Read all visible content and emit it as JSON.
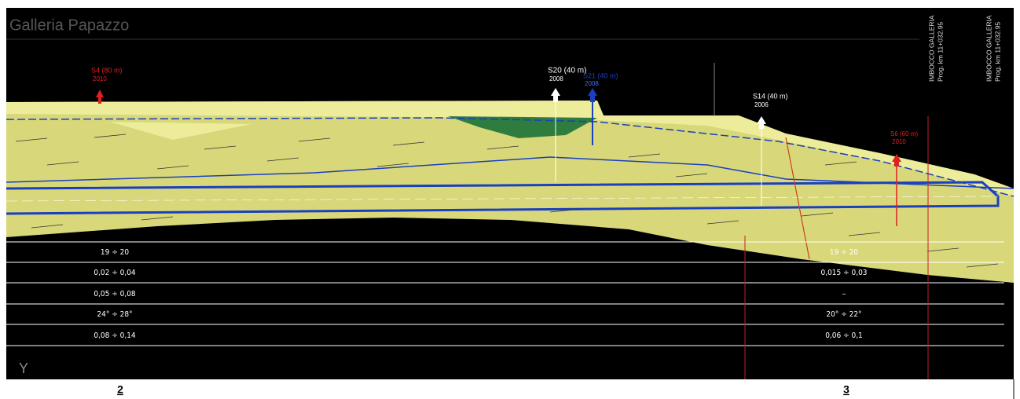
{
  "header": {
    "title": "Galleria Papazzo"
  },
  "boreholes": [
    {
      "name": "S4 (80 m)",
      "year": "2010"
    },
    {
      "name": "S20 (40 m)",
      "year": "2008"
    },
    {
      "name": "S21 (40 m)",
      "year": "2008"
    },
    {
      "name": "S14 (40 m)",
      "year": "2006"
    },
    {
      "name": "S6 (60 m)",
      "year": "2010"
    }
  ],
  "portals": [
    {
      "label": "IMBOCCO GALLERIA",
      "progressive": "Prog. km 11+032.95"
    },
    {
      "label": "IMBOCCO GALLERIA",
      "progressive": "Prog. km 11+032.95"
    }
  ],
  "table": {
    "rows": [
      [
        "19 ÷ 20",
        "19 ÷ 20"
      ],
      [
        "0,02 ÷ 0,04",
        "0,015 ÷ 0,03"
      ],
      [
        "0,05 ÷ 0,08",
        "–"
      ],
      [
        "24° ÷ 28°",
        "20° ÷ 22°"
      ],
      [
        "0,08 ÷ 0,14",
        "0,06 ÷ 0,1"
      ]
    ]
  },
  "axis_label": "Y",
  "sections": [
    "2",
    "3"
  ]
}
